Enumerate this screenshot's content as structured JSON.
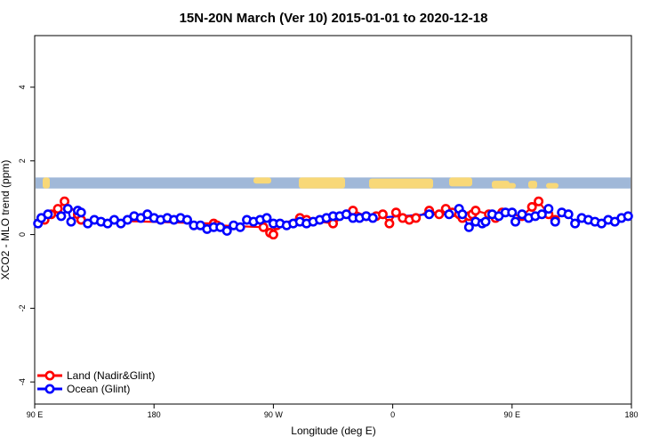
{
  "chart_data": {
    "type": "scatter",
    "title": "15N-20N March (Ver 10)   2015-01-01 to 2020-12-18",
    "xlabel": "Longitude (deg E)",
    "ylabel": "XCO2 - MLO trend (ppm)",
    "xlim": [
      90,
      450
    ],
    "ylim": [
      -4.6,
      5.4
    ],
    "x_ticks": [
      {
        "value": 90,
        "label": "90 E"
      },
      {
        "value": 162,
        "label": "180"
      },
      {
        "value": 234,
        "label": "90 W"
      },
      {
        "value": 306,
        "label": "0"
      },
      {
        "value": 378,
        "label": "90 E"
      },
      {
        "value": 450,
        "label": "180"
      }
    ],
    "y_ticks": [
      {
        "value": -4,
        "label": "-4"
      },
      {
        "value": -2,
        "label": "-2"
      },
      {
        "value": 0,
        "label": "0"
      },
      {
        "value": 2,
        "label": "2"
      },
      {
        "value": 4,
        "label": "4"
      }
    ],
    "grid": false,
    "legend": "bottom-left",
    "land_band": {
      "y_min": 1.25,
      "y_max": 1.55,
      "ocean_color": "#a0b8d8",
      "land_color": "#f8d878"
    },
    "series": [
      {
        "name": "Land (Nadir&Glint)",
        "color": "#ff0000",
        "x": [
          96,
          100,
          104,
          108,
          116,
          118,
          198,
          200,
          228,
          232,
          234,
          236,
          250,
          254,
          270,
          282,
          290,
          296,
          300,
          304,
          308,
          312,
          316,
          320,
          328,
          334,
          338,
          342,
          346,
          348,
          352,
          354,
          356,
          364,
          368,
          372,
          384,
          390,
          394,
          400,
          404
        ],
        "y": [
          0.4,
          0.55,
          0.7,
          0.9,
          0.55,
          0.4,
          0.3,
          0.25,
          0.2,
          0.05,
          0.0,
          0.25,
          0.45,
          0.4,
          0.3,
          0.65,
          0.5,
          0.5,
          0.55,
          0.3,
          0.6,
          0.45,
          0.4,
          0.45,
          0.65,
          0.55,
          0.7,
          0.6,
          0.55,
          0.45,
          0.5,
          0.55,
          0.65,
          0.55,
          0.45,
          0.6,
          0.5,
          0.75,
          0.9,
          0.55,
          0.4
        ]
      },
      {
        "name": "Ocean (Glint)",
        "color": "#0000ff",
        "x": [
          92,
          94,
          98,
          106,
          110,
          112,
          116,
          118,
          122,
          126,
          130,
          134,
          138,
          142,
          146,
          150,
          154,
          158,
          162,
          166,
          170,
          174,
          178,
          182,
          186,
          190,
          194,
          198,
          202,
          206,
          210,
          214,
          218,
          222,
          226,
          230,
          234,
          238,
          242,
          246,
          250,
          254,
          258,
          262,
          266,
          270,
          274,
          278,
          282,
          286,
          290,
          294,
          328,
          340,
          346,
          348,
          352,
          356,
          360,
          362,
          366,
          370,
          374,
          378,
          380,
          384,
          388,
          392,
          396,
          400,
          404,
          408,
          412,
          416,
          420,
          424,
          428,
          432,
          436,
          440,
          444,
          448
        ],
        "y": [
          0.3,
          0.45,
          0.55,
          0.5,
          0.7,
          0.35,
          0.65,
          0.6,
          0.3,
          0.4,
          0.35,
          0.3,
          0.4,
          0.3,
          0.4,
          0.5,
          0.45,
          0.55,
          0.45,
          0.4,
          0.45,
          0.4,
          0.45,
          0.4,
          0.25,
          0.25,
          0.15,
          0.2,
          0.2,
          0.1,
          0.25,
          0.2,
          0.4,
          0.35,
          0.4,
          0.45,
          0.3,
          0.3,
          0.25,
          0.3,
          0.35,
          0.3,
          0.35,
          0.4,
          0.45,
          0.5,
          0.5,
          0.55,
          0.45,
          0.45,
          0.5,
          0.45,
          0.55,
          0.55,
          0.7,
          0.55,
          0.2,
          0.35,
          0.3,
          0.35,
          0.55,
          0.5,
          0.6,
          0.6,
          0.35,
          0.55,
          0.45,
          0.5,
          0.55,
          0.7,
          0.35,
          0.6,
          0.55,
          0.3,
          0.45,
          0.4,
          0.35,
          0.3,
          0.4,
          0.35,
          0.45,
          0.5
        ]
      }
    ]
  }
}
